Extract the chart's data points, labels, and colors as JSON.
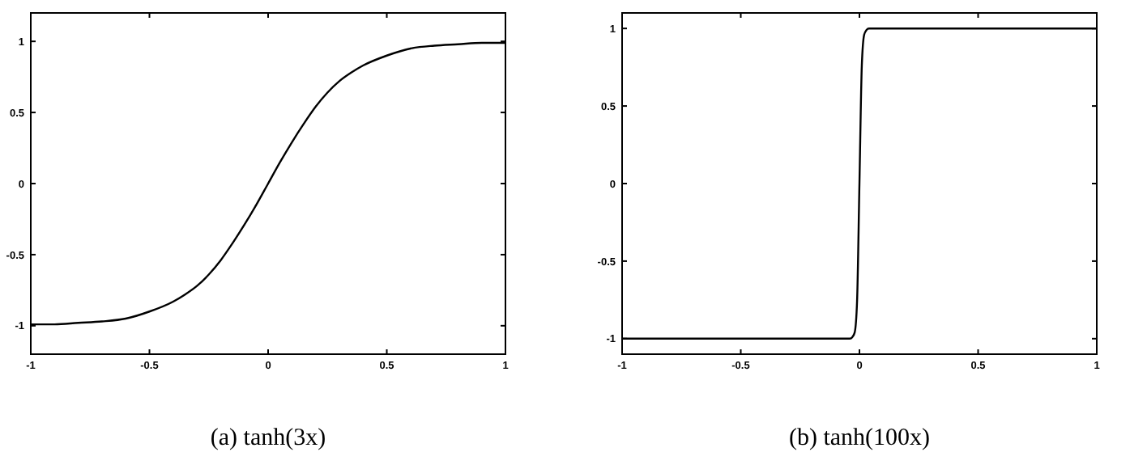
{
  "chart_data": [
    {
      "type": "line",
      "title": "(a) tanh(3x)",
      "x": [
        -1,
        -0.9,
        -0.8,
        -0.7,
        -0.6,
        -0.5,
        -0.4,
        -0.35,
        -0.3,
        -0.25,
        -0.2,
        -0.15,
        -0.1,
        -0.05,
        0,
        0.05,
        0.1,
        0.15,
        0.2,
        0.25,
        0.3,
        0.35,
        0.4,
        0.5,
        0.6,
        0.7,
        0.8,
        0.9,
        1
      ],
      "series": [
        {
          "color": "#000000",
          "values": [
            -0.99,
            -0.99,
            -0.98,
            -0.97,
            -0.95,
            -0.9,
            -0.83,
            -0.78,
            -0.72,
            -0.64,
            -0.54,
            -0.42,
            -0.29,
            -0.15,
            0,
            0.15,
            0.29,
            0.42,
            0.54,
            0.64,
            0.72,
            0.78,
            0.83,
            0.9,
            0.95,
            0.97,
            0.98,
            0.99,
            0.99
          ]
        }
      ],
      "xlim": [
        -1,
        1
      ],
      "ylim": [
        -1.2,
        1.2
      ],
      "xticks": [
        -1,
        -0.5,
        0,
        0.5,
        1
      ],
      "yticks": [
        -1,
        -0.5,
        0,
        0.5,
        1
      ],
      "grid": false
    },
    {
      "type": "line",
      "title": "(b) tanh(100x)",
      "x": [
        -1,
        -0.5,
        -0.04,
        -0.03,
        -0.02,
        -0.01,
        0,
        0.01,
        0.02,
        0.03,
        0.04,
        0.5,
        1
      ],
      "series": [
        {
          "color": "#000000",
          "values": [
            -1,
            -1,
            -1,
            -0.99,
            -0.96,
            -0.76,
            0,
            0.76,
            0.96,
            0.99,
            1,
            1,
            1
          ]
        }
      ],
      "xlim": [
        -1,
        1
      ],
      "ylim": [
        -1.1,
        1.1
      ],
      "xticks": [
        -1,
        -0.5,
        0,
        0.5,
        1
      ],
      "yticks": [
        -1,
        -0.5,
        0,
        0.5,
        1
      ],
      "grid": false
    }
  ]
}
